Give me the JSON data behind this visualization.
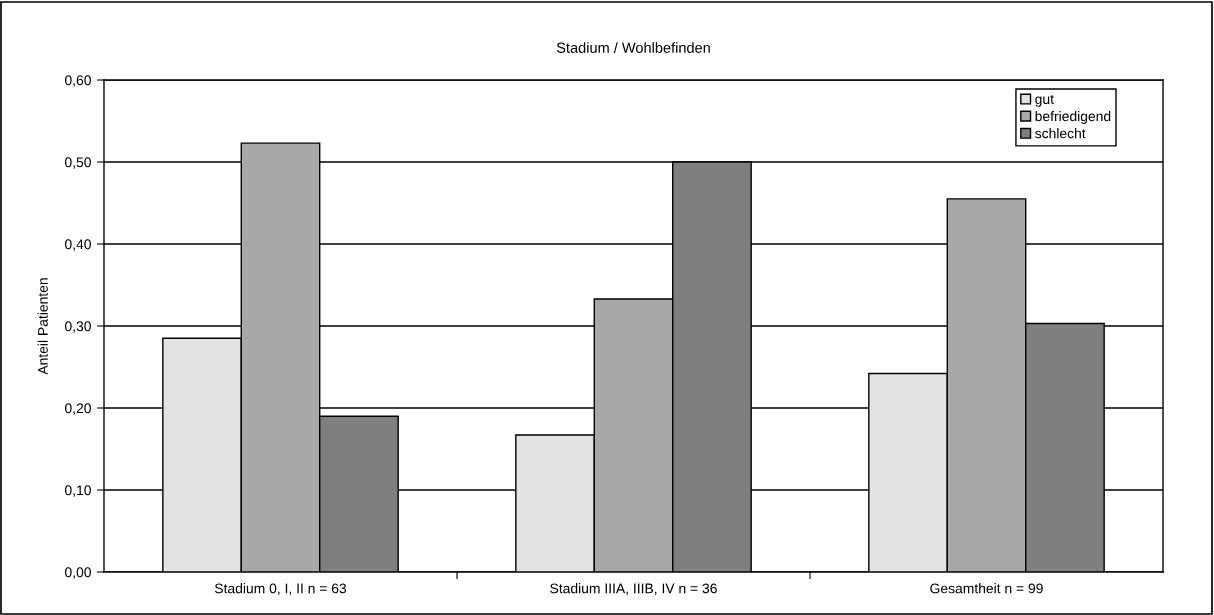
{
  "chart_data": {
    "type": "bar",
    "title": "Stadium / Wohlbefinden",
    "ylabel": "Anteil Patienten",
    "categories": [
      "Stadium 0, I, II n = 63",
      "Stadium IIIA, IIIB, IV n = 36",
      "Gesamtheit n = 99"
    ],
    "series": [
      {
        "name": "gut",
        "color": "#e3e3e3",
        "values": [
          0.285,
          0.167,
          0.242
        ]
      },
      {
        "name": "befriedigend",
        "color": "#a8a8a8",
        "values": [
          0.523,
          0.333,
          0.455
        ]
      },
      {
        "name": "schlecht",
        "color": "#7f7f7f",
        "values": [
          0.19,
          0.5,
          0.303
        ]
      }
    ],
    "ylim": [
      0,
      0.6
    ],
    "yticks": [
      {
        "value": 0,
        "label": "0,00"
      },
      {
        "value": 0.1,
        "label": "0,10"
      },
      {
        "value": 0.2,
        "label": "0,20"
      },
      {
        "value": 0.3,
        "label": "0,30"
      },
      {
        "value": 0.4,
        "label": "0,40"
      },
      {
        "value": 0.5,
        "label": "0,50"
      },
      {
        "value": 0.6,
        "label": "0,60"
      }
    ],
    "grid": "y",
    "legend": "top right"
  }
}
